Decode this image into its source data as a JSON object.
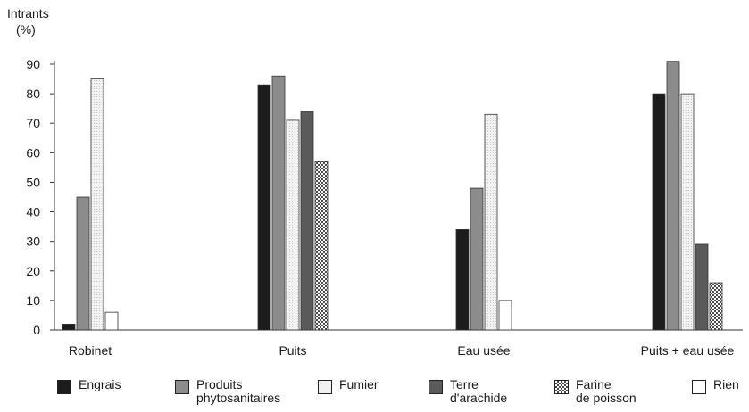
{
  "chart_data": {
    "type": "bar",
    "title": "",
    "ylabel": "Intrants\n(%)",
    "xlabel": "",
    "ylim": [
      0,
      90
    ],
    "yticks": [
      0,
      10,
      20,
      30,
      40,
      50,
      60,
      70,
      80,
      90
    ],
    "grid": false,
    "legend_position": "bottom",
    "categories": [
      "Robinet",
      "Puits",
      "Eau usée",
      "Puits + eau usée"
    ],
    "series": [
      {
        "name": "Engrais",
        "pattern": "solid",
        "color": "#1c1c1c",
        "values": [
          2,
          83,
          34,
          80
        ]
      },
      {
        "name": "Produits\nphytosanitaires",
        "pattern": "solid",
        "color": "#8c8c8c",
        "values": [
          45,
          86,
          48,
          91
        ]
      },
      {
        "name": "Fumier",
        "pattern": "light",
        "color": "#ececec",
        "values": [
          85,
          71,
          73,
          80
        ]
      },
      {
        "name": "Terre\nd'arachide",
        "pattern": "solid",
        "color": "#5a5a5a",
        "values": [
          null,
          74,
          null,
          29
        ]
      },
      {
        "name": "Farine\nde poisson",
        "pattern": "checker",
        "color": "#6e6e6e",
        "values": [
          null,
          57,
          null,
          16
        ]
      },
      {
        "name": "Rien",
        "pattern": "empty",
        "color": "#ffffff",
        "values": [
          6,
          null,
          10,
          null
        ]
      }
    ]
  }
}
